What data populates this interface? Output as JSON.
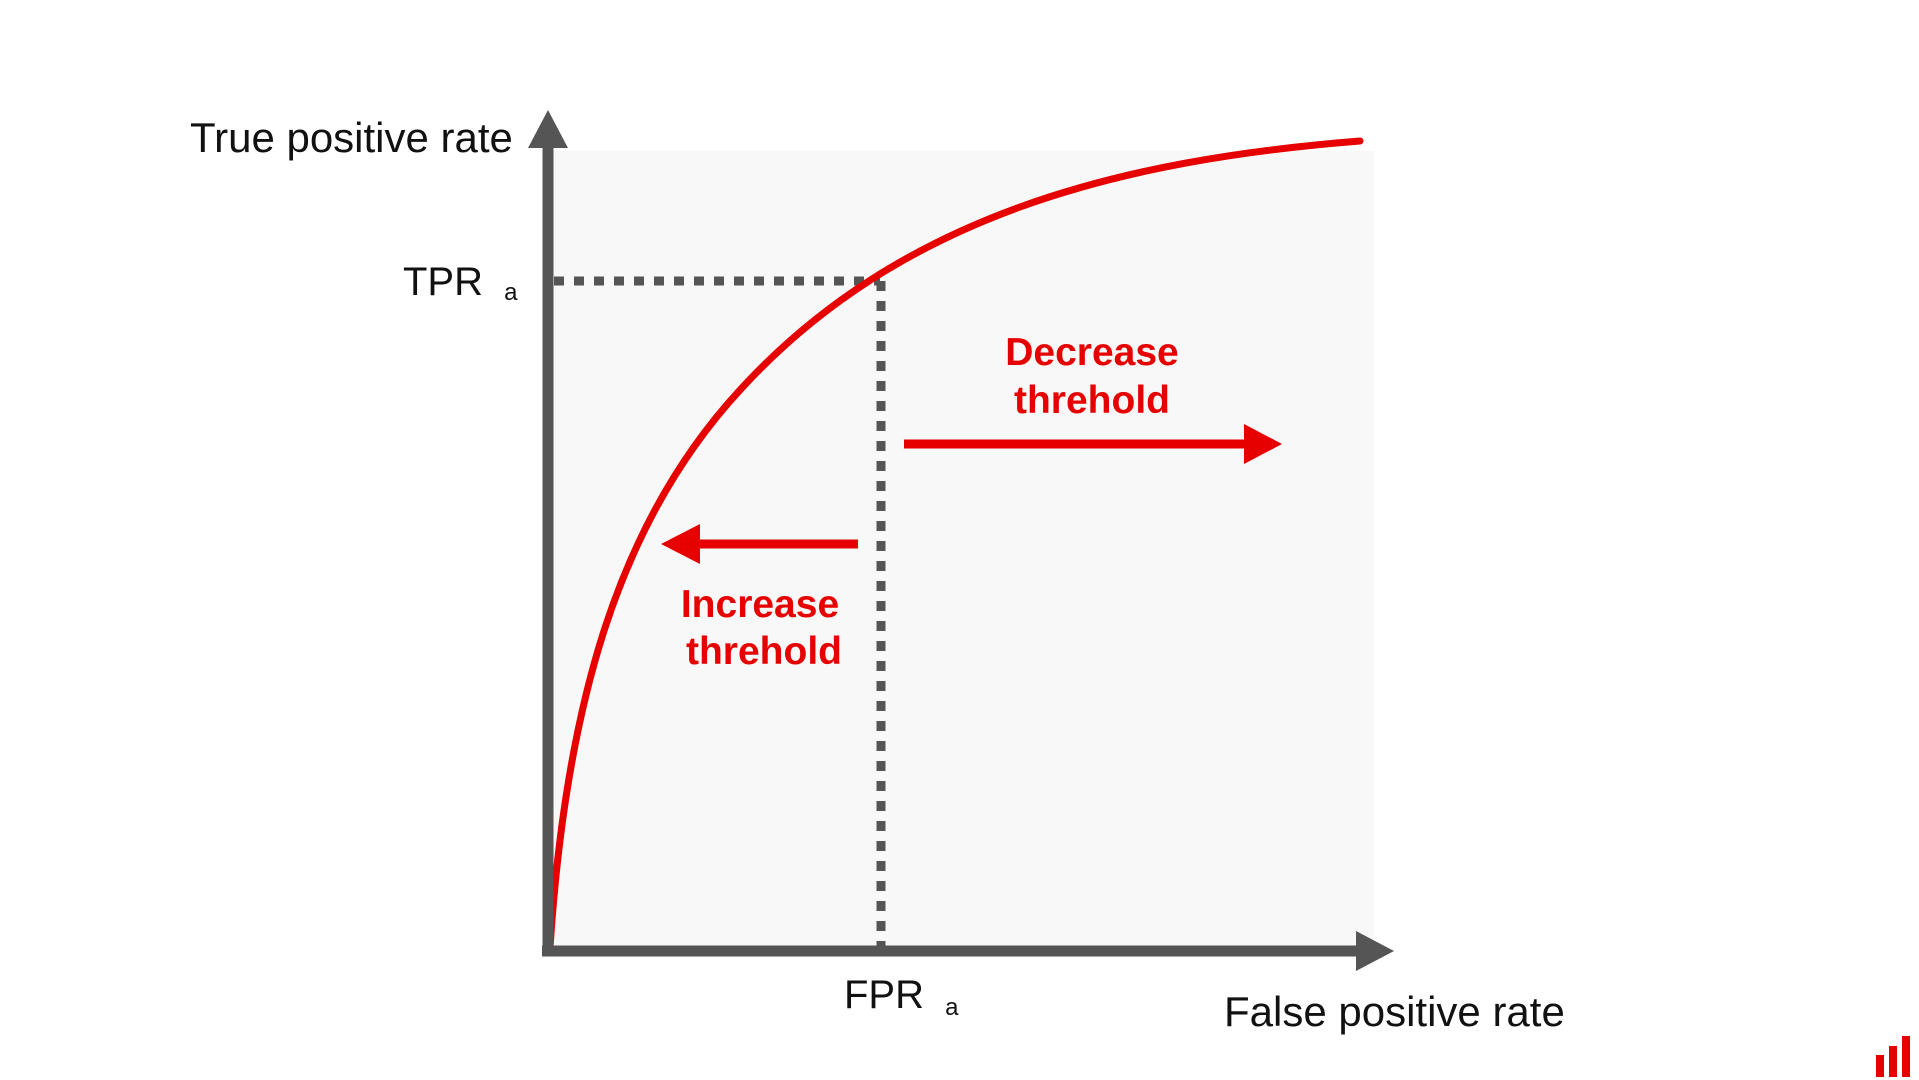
{
  "axes": {
    "y_label": "True positive rate",
    "x_label": "False positive rate"
  },
  "marker": {
    "tpr_label": "TPR",
    "tpr_subscript": "a",
    "fpr_label": "FPR",
    "fpr_subscript": "a"
  },
  "annotations": {
    "decrease_line1": "Decrease",
    "decrease_line2": "threhold",
    "increase_line1": "Increase",
    "increase_line2": "threhold"
  },
  "colors": {
    "curve": "#e60000",
    "axis": "#555555",
    "plot_background": "#f8f8f8",
    "annotation": "#e60000",
    "logo": "#e60000"
  },
  "icons": {
    "corner_logo": "bar-chart-logo-icon"
  }
}
